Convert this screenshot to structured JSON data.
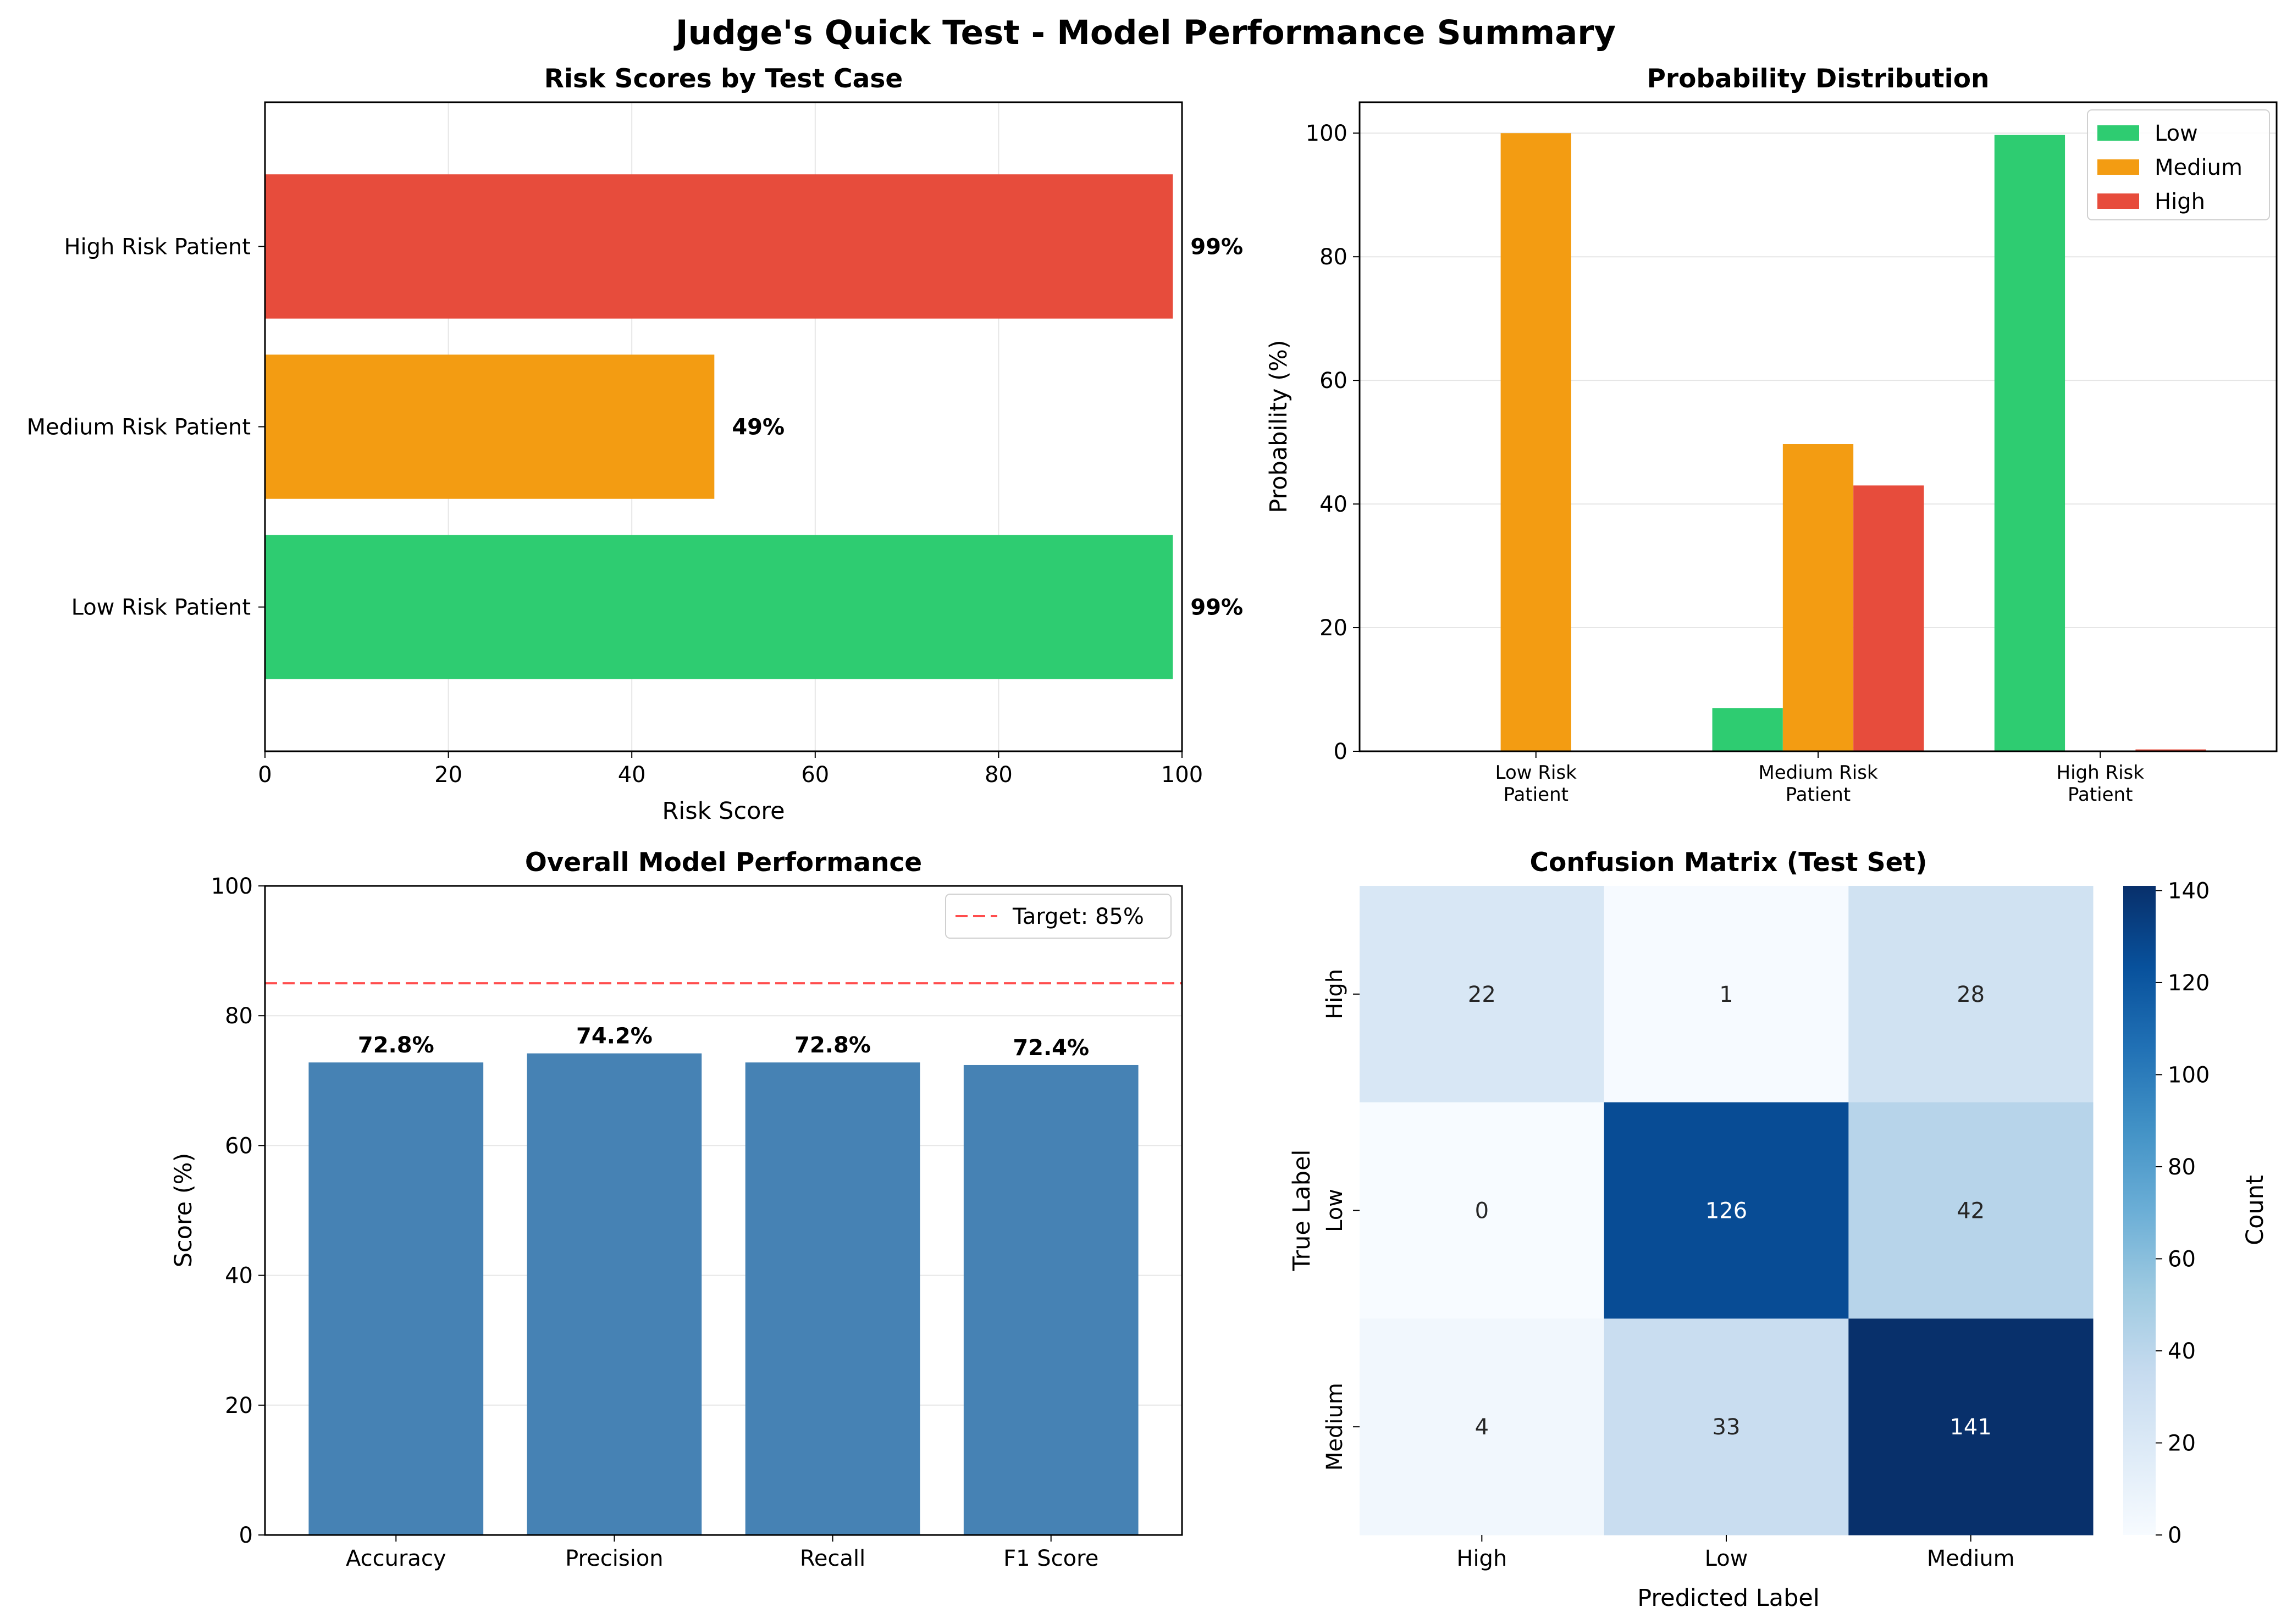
{
  "title": "Judge's Quick Test - Model Performance Summary",
  "charts": [
    {
      "type": "bar",
      "orientation": "horizontal",
      "title": "Risk Scores by Test Case",
      "xlabel": "Risk Score",
      "ylabel": "",
      "categories": [
        "Low Risk Patient",
        "Medium Risk Patient",
        "High Risk Patient"
      ],
      "values": [
        99,
        49,
        99
      ],
      "value_labels": [
        "99%",
        "49%",
        "99%"
      ],
      "colors": [
        "#2ecc71",
        "#f39c12",
        "#e74c3c"
      ],
      "xlim": [
        0,
        100
      ],
      "xticks": [
        "0",
        "20",
        "40",
        "60",
        "80",
        "100"
      ],
      "grid": true
    },
    {
      "type": "bar",
      "title": "Probability Distribution",
      "xlabel": "",
      "ylabel": "Probability (%)",
      "categories": [
        [
          "Low Risk",
          "Patient"
        ],
        [
          "Medium Risk",
          "Patient"
        ],
        [
          "High Risk",
          "Patient"
        ]
      ],
      "series": [
        {
          "name": "Low",
          "color": "#2ecc71",
          "values": [
            0,
            7,
            99.7
          ]
        },
        {
          "name": "Medium",
          "color": "#f39c12",
          "values": [
            100,
            49.7,
            0
          ]
        },
        {
          "name": "High",
          "color": "#e74c3c",
          "values": [
            0,
            43,
            0.3
          ]
        }
      ],
      "ylim": [
        0,
        105
      ],
      "yticks": [
        "0",
        "20",
        "40",
        "60",
        "80",
        "100"
      ],
      "legend": "top-right",
      "grid": true
    },
    {
      "type": "bar",
      "title": "Overall Model Performance",
      "xlabel": "",
      "ylabel": "Score (%)",
      "categories": [
        "Accuracy",
        "Precision",
        "Recall",
        "F1 Score"
      ],
      "values": [
        72.8,
        74.2,
        72.8,
        72.4
      ],
      "value_labels": [
        "72.8%",
        "74.2%",
        "72.8%",
        "72.4%"
      ],
      "color": "#4682b4",
      "ylim": [
        0,
        100
      ],
      "yticks": [
        "0",
        "20",
        "40",
        "60",
        "80",
        "100"
      ],
      "reference_line": {
        "value": 85,
        "label": "Target: 85%",
        "color": "#ff4d4d",
        "style": "dashed"
      },
      "legend": "top-right",
      "grid": true
    },
    {
      "type": "heatmap",
      "title": "Confusion Matrix (Test Set)",
      "xlabel": "Predicted Label",
      "ylabel": "True Label",
      "x_categories": [
        "High",
        "Low",
        "Medium"
      ],
      "y_categories": [
        "High",
        "Low",
        "Medium"
      ],
      "matrix": [
        [
          22,
          1,
          28
        ],
        [
          0,
          126,
          42
        ],
        [
          4,
          33,
          141
        ]
      ],
      "colormap": "Blues",
      "colorbar": {
        "label": "Count",
        "range": [
          0,
          141
        ],
        "ticks": [
          "0",
          "20",
          "40",
          "60",
          "80",
          "100",
          "120",
          "140"
        ]
      }
    }
  ]
}
